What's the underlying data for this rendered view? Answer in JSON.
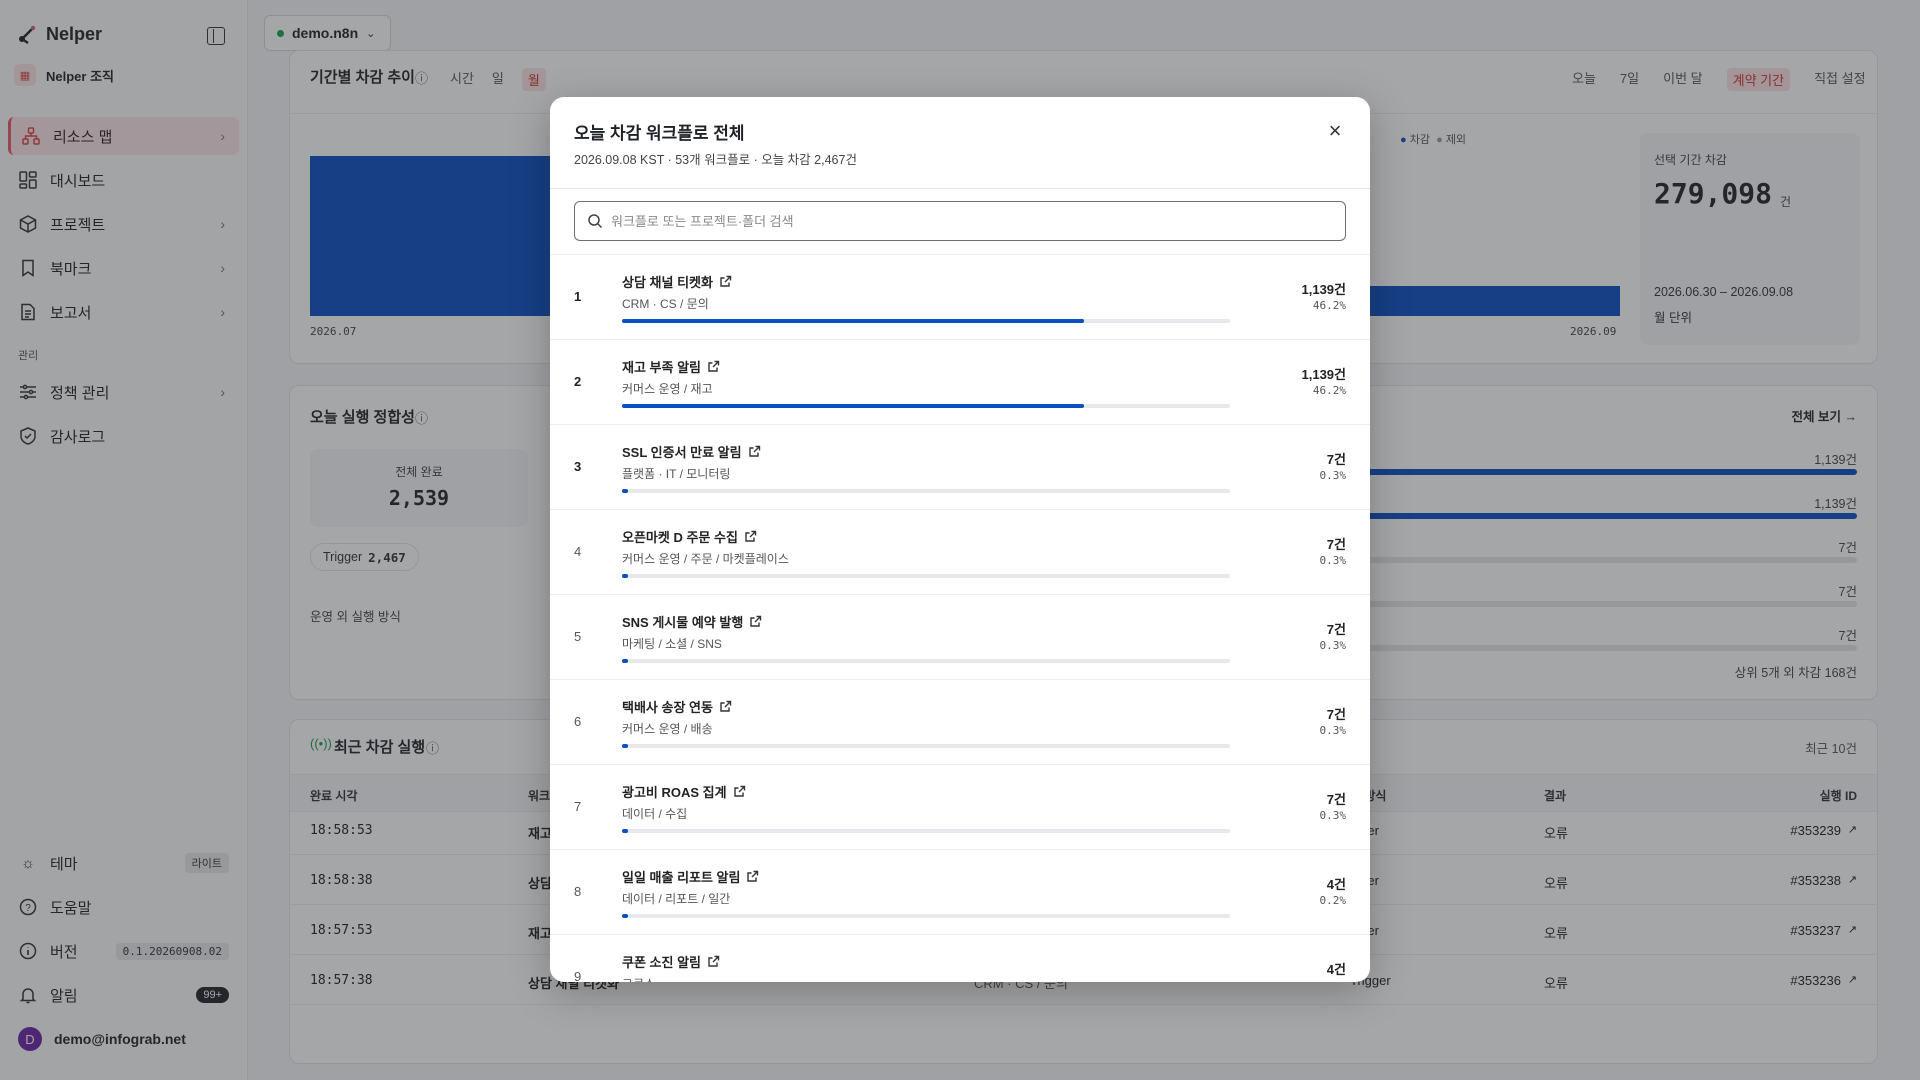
{
  "brand": {
    "name": "Nelper"
  },
  "org": {
    "name": "Nelper 조직"
  },
  "nav": [
    {
      "label": "리소스 맵",
      "icon": "resource-map-icon",
      "active": true
    },
    {
      "label": "대시보드",
      "icon": "dashboard-icon"
    },
    {
      "label": "프로젝트",
      "icon": "project-icon"
    },
    {
      "label": "북마크",
      "icon": "bookmark-icon"
    },
    {
      "label": "보고서",
      "icon": "report-icon"
    }
  ],
  "admin": {
    "section_label": "관리",
    "items": [
      {
        "label": "정책 관리",
        "icon": "policy-icon"
      },
      {
        "label": "감사로그",
        "icon": "audit-icon"
      }
    ]
  },
  "footer": {
    "theme_label": "테마",
    "theme_value": "라이트",
    "help_label": "도움말",
    "version_label": "버전",
    "version_value": "0.1.20260908.02",
    "alerts_label": "알림",
    "alerts_count": "99+",
    "user_initial": "D",
    "user_email": "demo@infograb.net"
  },
  "topbar": {
    "instance": "demo.n8n"
  },
  "trend_card": {
    "title": "기간별 차감 추이",
    "granularity": [
      "시간",
      "일",
      "월"
    ],
    "granularity_selected": "월",
    "ranges": [
      "오늘",
      "7일",
      "이번 달",
      "계약 기간",
      "직접 설정"
    ],
    "range_selected": "계약 기간",
    "legend": [
      "차감",
      "제외"
    ],
    "x_start": "2026.07",
    "x_end": "2026.09",
    "total_label": "선택 기간 차감",
    "total_value": "279,098",
    "total_unit": "건",
    "period": "2026.06.30 – 2026.09.08",
    "unit_note": "월 단위"
  },
  "integrity_card": {
    "title": "오늘 실행 정합성",
    "completed_label": "전체 완료",
    "completed_value": "2,539",
    "trigger_label": "Trigger",
    "trigger_value": "2,467",
    "other_label": "운영 외 실행 방식",
    "view_all": "전체 보기 →",
    "side_counts": [
      "1,139건",
      "1,139건",
      "7건",
      "7건",
      "7건"
    ],
    "side_fractions": [
      1,
      1,
      0.006,
      0.006,
      0.006
    ],
    "others_note": "상위 5개 외 차감 168건"
  },
  "recent_card": {
    "title": "최근 차감 실행",
    "note": "최근 10건",
    "headers": {
      "time": "완료 시각",
      "workflow": "워크",
      "method": "행 방식",
      "result": "결과",
      "exec": "실행 ID"
    },
    "rows": [
      {
        "time": "18:58:53",
        "wf": "재고",
        "path": "",
        "method": "igger",
        "result": "오류",
        "id": "#353239"
      },
      {
        "time": "18:58:38",
        "wf": "상담",
        "path": "",
        "method": "igger",
        "result": "오류",
        "id": "#353238"
      },
      {
        "time": "18:57:53",
        "wf": "재고",
        "path": "",
        "method": "igger",
        "result": "오류",
        "id": "#353237"
      },
      {
        "time": "18:57:38",
        "wf": "상담 채널 티켓화",
        "path": "CRM · CS / 문의",
        "method": "Trigger",
        "result": "오류",
        "id": "#353236"
      }
    ]
  },
  "modal": {
    "title": "오늘 차감 워크플로 전체",
    "subtitle": "2026.09.08 KST · 53개 워크플로 · 오늘 차감 2,467건",
    "search_placeholder": "워크플로 또는 프로젝트·폴더 검색",
    "rows": [
      {
        "rank": "1",
        "name": "상담 채널 티켓화",
        "path": "CRM · CS / 문의",
        "count": "1,139건",
        "pct": "46.2%",
        "share": 0.462
      },
      {
        "rank": "2",
        "name": "재고 부족 알림",
        "path": "커머스 운영 / 재고",
        "count": "1,139건",
        "pct": "46.2%",
        "share": 0.462
      },
      {
        "rank": "3",
        "name": "SSL 인증서 만료 알림",
        "path": "플랫폼 · IT / 모니터링",
        "count": "7건",
        "pct": "0.3%",
        "share": 0.003
      },
      {
        "rank": "4",
        "name": "오픈마켓 D 주문 수집",
        "path": "커머스 운영 / 주문 / 마켓플레이스",
        "count": "7건",
        "pct": "0.3%",
        "share": 0.003
      },
      {
        "rank": "5",
        "name": "SNS 게시물 예약 발행",
        "path": "마케팅 / 소셜 / SNS",
        "count": "7건",
        "pct": "0.3%",
        "share": 0.003
      },
      {
        "rank": "6",
        "name": "택배사 송장 연동",
        "path": "커머스 운영 / 배송",
        "count": "7건",
        "pct": "0.3%",
        "share": 0.003
      },
      {
        "rank": "7",
        "name": "광고비 ROAS 집계",
        "path": "데이터 / 수집",
        "count": "7건",
        "pct": "0.3%",
        "share": 0.003
      },
      {
        "rank": "8",
        "name": "일일 매출 리포트 알림",
        "path": "데이터 / 리포트 / 일간",
        "count": "4건",
        "pct": "0.2%",
        "share": 0.002
      },
      {
        "rank": "9",
        "name": "쿠폰 소진 알림",
        "path": "그로스",
        "count": "4건",
        "pct": "",
        "share": 0.002
      }
    ]
  }
}
